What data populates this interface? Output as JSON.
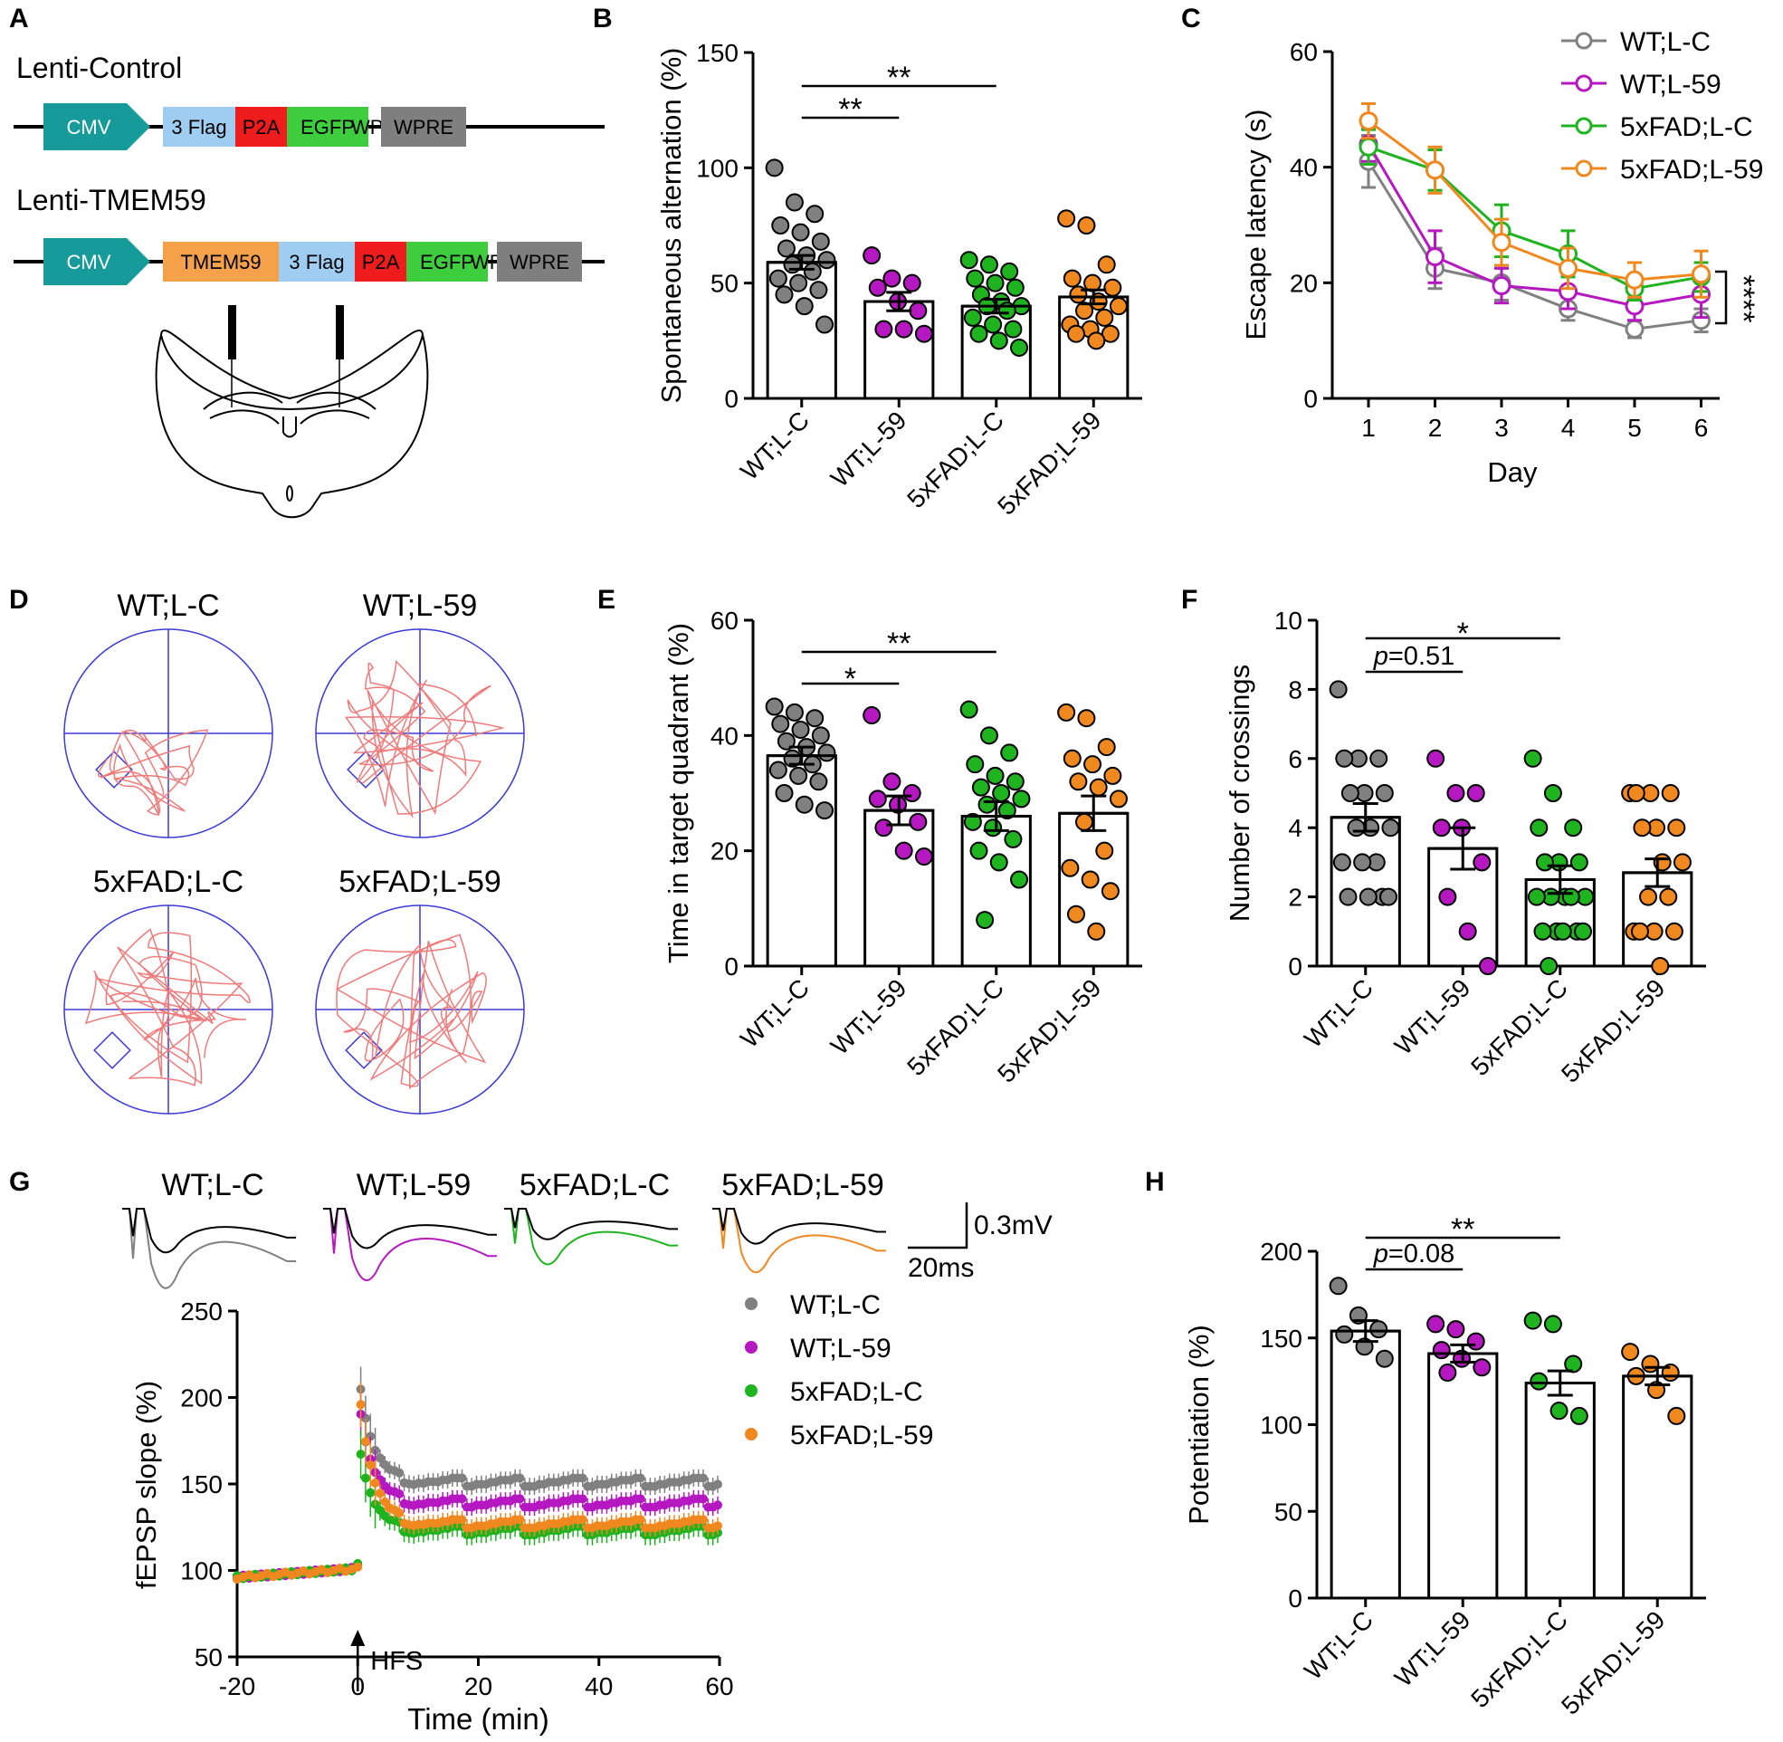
{
  "colors": {
    "wt_lc": "#808080",
    "wt_l59": "#b517c1",
    "fad_lc": "#1fb31f",
    "fad_l59": "#f08820",
    "cmv": "#179a9a",
    "flag": "#9fcdf2",
    "p2a": "#ee1c1c",
    "egfp": "#3dcd3d",
    "wpre": "#7f7f7f",
    "tmem": "#f5a04a",
    "track": "#f07a7a",
    "maze": "#3a3ad8"
  },
  "groups": [
    "WT;L-C",
    "WT;L-59",
    "5xFAD;L-C",
    "5xFAD;L-59"
  ],
  "panels": {
    "A": {
      "letter": "A",
      "control_title": "Lenti-Control",
      "tmem_title": "Lenti-TMEM59",
      "control_blocks": [
        "CMV",
        "3 Flag",
        "P2A",
        "EGFP",
        "WPRE"
      ],
      "tmem_blocks": [
        "CMV",
        "TMEM59",
        "3 Flag",
        "P2A",
        "EGFP",
        "WPRE"
      ]
    },
    "B": {
      "letter": "B"
    },
    "C": {
      "letter": "C"
    },
    "D": {
      "letter": "D"
    },
    "E": {
      "letter": "E"
    },
    "F": {
      "letter": "F"
    },
    "G": {
      "letter": "G"
    },
    "H": {
      "letter": "H"
    }
  },
  "traces": {
    "scale_v": "0.3mV",
    "scale_t": "20ms",
    "labels": [
      "WT;L-C",
      "WT;L-59",
      "5xFAD;L-C",
      "5xFAD;L-59"
    ]
  },
  "chart_data": [
    {
      "id": "B",
      "type": "bar",
      "ylabel": "Spontaneous alternation (%)",
      "ylim": [
        0,
        150
      ],
      "yticks": [
        0,
        50,
        100,
        150
      ],
      "categories": [
        "WT;L-C",
        "WT;L-59",
        "5xFAD;L-C",
        "5xFAD;L-59"
      ],
      "means": [
        59,
        42,
        40,
        44
      ],
      "sems": [
        3,
        4,
        3,
        3
      ],
      "points": [
        [
          100,
          85,
          80,
          75,
          72,
          68,
          65,
          62,
          60,
          58,
          55,
          52,
          50,
          47,
          45,
          40,
          32
        ],
        [
          62,
          52,
          50,
          48,
          42,
          38,
          30,
          30,
          28
        ],
        [
          60,
          58,
          55,
          52,
          50,
          48,
          45,
          42,
          40,
          40,
          38,
          35,
          32,
          30,
          28,
          25,
          22
        ],
        [
          78,
          75,
          58,
          52,
          50,
          48,
          45,
          42,
          40,
          38,
          35,
          32,
          30,
          28,
          28,
          25
        ]
      ],
      "sig": [
        {
          "from": 0,
          "to": 1,
          "label": "**"
        },
        {
          "from": 0,
          "to": 2,
          "label": "**"
        }
      ]
    },
    {
      "id": "C",
      "type": "line",
      "xlabel": "Day",
      "ylabel": "Escape latency (s)",
      "x": [
        1,
        2,
        3,
        4,
        5,
        6
      ],
      "ylim": [
        0,
        60
      ],
      "yticks": [
        0,
        20,
        40,
        60
      ],
      "series": [
        {
          "name": "WT;L-C",
          "values": [
            41,
            22.5,
            20,
            15.5,
            12,
            13.5
          ],
          "errors": [
            4.5,
            3.5,
            3,
            2,
            1.5,
            2
          ]
        },
        {
          "name": "WT;L-59",
          "values": [
            44,
            24.5,
            19.5,
            18.5,
            16,
            18
          ],
          "errors": [
            3,
            4.5,
            3,
            3,
            2.5,
            4
          ]
        },
        {
          "name": "5xFAD;L-C",
          "values": [
            43.5,
            39.5,
            29,
            25,
            19,
            21
          ],
          "errors": [
            3,
            3.5,
            4.5,
            4,
            2,
            2.5
          ]
        },
        {
          "name": "5xFAD;L-59",
          "values": [
            48,
            39.5,
            27,
            22.5,
            20.5,
            21.5
          ],
          "errors": [
            3,
            4,
            4,
            3.5,
            3,
            4
          ]
        }
      ],
      "sig": "****"
    },
    {
      "id": "E",
      "type": "bar",
      "ylabel": "Time in target quadrant (%)",
      "ylim": [
        0,
        60
      ],
      "yticks": [
        0,
        20,
        40,
        60
      ],
      "categories": [
        "WT;L-C",
        "WT;L-59",
        "5xFAD;L-C",
        "5xFAD;L-59"
      ],
      "means": [
        36.5,
        27,
        26,
        26.5
      ],
      "sems": [
        1.5,
        2.5,
        2.5,
        3
      ],
      "points": [
        [
          45,
          44,
          43,
          42,
          41,
          40,
          39,
          38,
          37,
          36,
          35,
          34,
          33,
          32,
          30,
          28,
          27
        ],
        [
          43.5,
          32,
          30,
          29,
          28,
          25,
          24,
          20,
          19
        ],
        [
          44.5,
          40,
          37,
          35,
          33,
          32,
          31,
          30,
          29,
          28,
          27,
          25,
          24,
          22,
          20,
          18,
          15,
          8
        ],
        [
          44,
          43,
          38,
          36,
          35,
          33,
          32,
          31,
          29,
          25,
          20,
          17,
          15,
          13,
          9,
          6
        ]
      ],
      "sig": [
        {
          "from": 0,
          "to": 1,
          "label": "*"
        },
        {
          "from": 0,
          "to": 2,
          "label": "**"
        }
      ]
    },
    {
      "id": "F",
      "type": "bar",
      "ylabel": "Number of crossings",
      "ylim": [
        0,
        10
      ],
      "yticks": [
        0,
        2,
        4,
        6,
        8,
        10
      ],
      "categories": [
        "WT;L-C",
        "WT;L-59",
        "5xFAD;L-C",
        "5xFAD;L-59"
      ],
      "means": [
        4.3,
        3.4,
        2.5,
        2.7
      ],
      "sems": [
        0.4,
        0.6,
        0.4,
        0.4
      ],
      "points": [
        [
          8,
          6,
          6,
          6,
          5,
          5,
          5,
          4,
          4,
          4,
          3,
          3,
          3,
          2,
          2,
          2,
          2
        ],
        [
          6,
          5,
          5,
          4,
          4,
          3,
          2,
          1,
          0
        ],
        [
          6,
          5,
          4,
          4,
          3,
          3,
          3,
          2,
          2,
          2,
          2,
          2,
          1,
          1,
          1,
          1,
          1,
          0
        ],
        [
          5,
          5,
          5,
          5,
          4,
          4,
          4,
          3,
          3,
          2,
          2,
          1,
          1,
          1,
          1,
          0
        ]
      ],
      "sig": [
        {
          "from": 0,
          "to": 1,
          "label": "p=0.51"
        },
        {
          "from": 0,
          "to": 2,
          "label": "*"
        }
      ]
    },
    {
      "id": "G",
      "type": "scatter",
      "xlabel": "Time (min)",
      "ylabel": "fEPSP slope (%)",
      "xlim": [
        -20,
        60
      ],
      "ylim": [
        50,
        250
      ],
      "xticks": [
        -20,
        0,
        20,
        40,
        60
      ],
      "yticks": [
        50,
        100,
        150,
        200,
        250
      ],
      "annotation": "HFS",
      "series": [
        {
          "name": "WT;L-C",
          "peak": 220,
          "plateau": 151,
          "err": 5
        },
        {
          "name": "WT;L-59",
          "peak": 205,
          "plateau": 139,
          "err": 5
        },
        {
          "name": "5xFAD;L-C",
          "peak": 180,
          "plateau": 123,
          "err": 6
        },
        {
          "name": "5xFAD;L-59",
          "peak": 215,
          "plateau": 127,
          "err": 5
        }
      ]
    },
    {
      "id": "H",
      "type": "bar",
      "ylabel": "Potentiation (%)",
      "ylim": [
        0,
        200
      ],
      "yticks": [
        0,
        50,
        100,
        150,
        200
      ],
      "categories": [
        "WT;L-C",
        "WT;L-59",
        "5xFAD;L-C",
        "5xFAD;L-59"
      ],
      "means": [
        154,
        141,
        124,
        128
      ],
      "sems": [
        6,
        5,
        7,
        5
      ],
      "points": [
        [
          180,
          163,
          155,
          152,
          145,
          138
        ],
        [
          158,
          155,
          148,
          143,
          138,
          133,
          130
        ],
        [
          160,
          158,
          135,
          125,
          108,
          105
        ],
        [
          142,
          135,
          130,
          128,
          120,
          105
        ]
      ],
      "sig": [
        {
          "from": 0,
          "to": 1,
          "label": "p=0.08"
        },
        {
          "from": 0,
          "to": 2,
          "label": "**"
        }
      ]
    }
  ]
}
